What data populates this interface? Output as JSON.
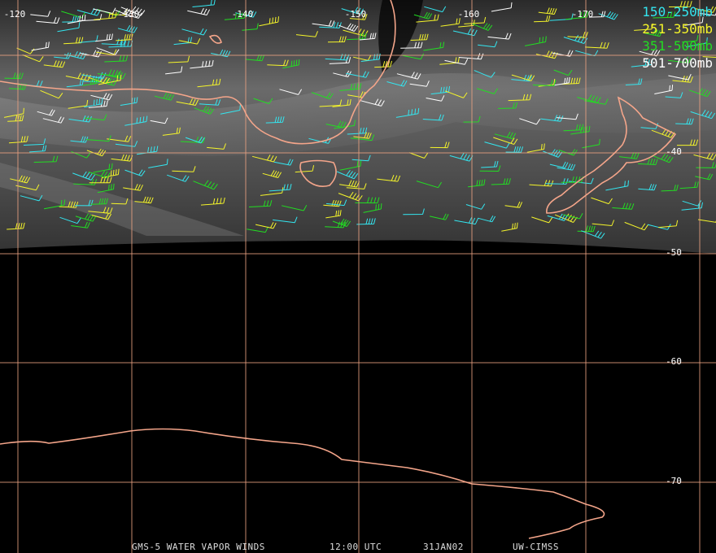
{
  "map": {
    "lon_labels": [
      "-120",
      "-130",
      "-140",
      "-150",
      "-160",
      "-170"
    ],
    "lat_labels": [
      "-40",
      "-50",
      "-60",
      "-70"
    ],
    "legend": [
      {
        "label": "150-250mb",
        "color": "#33e6f0"
      },
      {
        "label": "251-350mb",
        "color": "#f5f52a"
      },
      {
        "label": "351-500mb",
        "color": "#22dd22"
      },
      {
        "label": "501-700mb",
        "color": "#ffffff"
      }
    ],
    "footer": [
      "GMS-5 WATER VAPOR WINDS",
      "12:00 UTC",
      "31JAN02",
      "UW-CIMSS"
    ]
  }
}
